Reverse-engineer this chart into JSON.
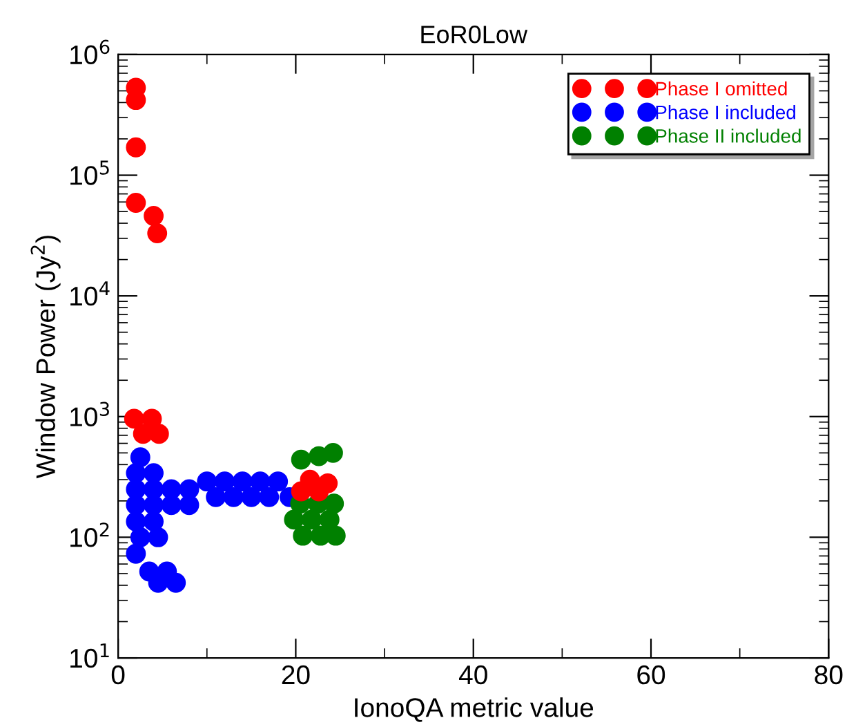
{
  "chart_data": {
    "type": "scatter",
    "title": "EoR0Low",
    "xlabel": "IonoQA metric value",
    "ylabel": "Window Power (Jy$^{2}$)",
    "xlim": [
      0,
      80
    ],
    "xticks": [
      0,
      20,
      40,
      60,
      80
    ],
    "ylim": [
      10,
      1000000
    ],
    "log": "y",
    "yticks": [
      {
        "value": 10,
        "label": "10$^{1}$"
      },
      {
        "value": 100,
        "label": "10$^{2}$"
      },
      {
        "value": 1000,
        "label": "10$^{3}$"
      },
      {
        "value": 10000,
        "label": "10$^{4}$"
      },
      {
        "value": 100000,
        "label": "10$^{5}$"
      },
      {
        "value": 1000000,
        "label": "10$^{6}$"
      }
    ],
    "grid": false,
    "legend": "top right",
    "marker": "circle",
    "series": [
      {
        "name": "Phase I omitted",
        "color": "#ff0000",
        "x": [
          2.0,
          2.0,
          2.0,
          2.0,
          4.0,
          4.4,
          1.8,
          3.8,
          2.8,
          4.6,
          20.6,
          22.6,
          21.6,
          23.6
        ],
        "values": [
          530000,
          420000,
          170000,
          59000,
          46000,
          33000,
          960,
          960,
          720,
          720,
          240,
          240,
          300,
          280
        ]
      },
      {
        "name": "Phase I included",
        "color": "#0000ff",
        "x": [
          2.5,
          2.0,
          4.0,
          2.0,
          4.0,
          6.0,
          8.0,
          2.0,
          4.0,
          6.0,
          8.0,
          2.0,
          4.0,
          2.5,
          4.5,
          2.0,
          3.5,
          5.5,
          4.5,
          6.5,
          10.0,
          12.0,
          14.0,
          16.0,
          18.0,
          11.0,
          13.0,
          15.0,
          17.0,
          19.3
        ],
        "values": [
          460,
          340,
          340,
          250,
          250,
          250,
          250,
          185,
          185,
          185,
          185,
          135,
          135,
          100,
          100,
          73,
          52,
          52,
          42,
          42,
          290,
          290,
          290,
          290,
          290,
          215,
          215,
          215,
          215,
          215
        ]
      },
      {
        "name": "Phase II included",
        "color": "#008000",
        "x": [
          20.6,
          22.6,
          24.2,
          20.5,
          22.5,
          24.3,
          19.8,
          21.8,
          23.8,
          20.8,
          22.8,
          24.5
        ],
        "values": [
          440,
          470,
          500,
          190,
          190,
          190,
          140,
          140,
          140,
          103,
          103,
          103
        ]
      }
    ]
  }
}
